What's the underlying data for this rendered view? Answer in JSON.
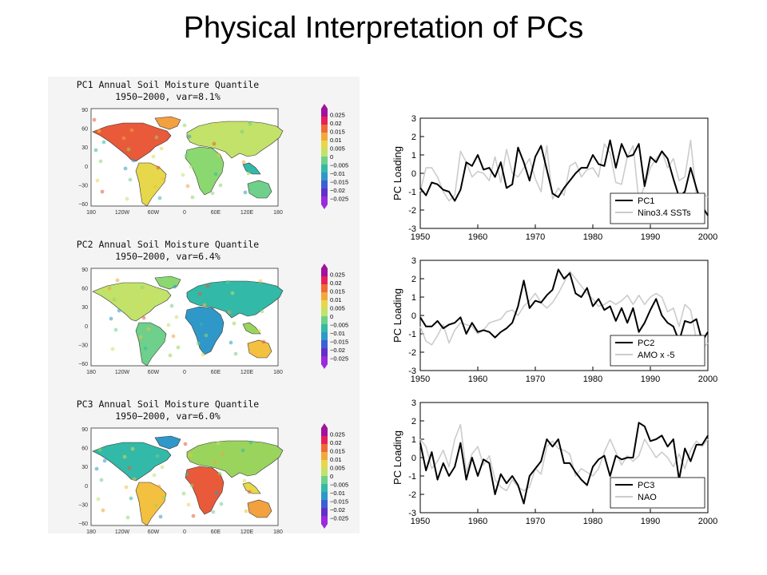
{
  "title": "Physical Interpretation of PCs",
  "maps": [
    {
      "title_line1": "PC1 Annual Soil Moisture Quantile",
      "title_line2": "1950−2000, var=8.1%"
    },
    {
      "title_line1": "PC2 Annual Soil Moisture Quantile",
      "title_line2": "1950−2000, var=6.4%"
    },
    {
      "title_line1": "PC3 Annual Soil Moisture Quantile",
      "title_line2": "1950−2000, var=6.0%"
    }
  ],
  "map_axes": {
    "lat_labels": [
      "90",
      "60",
      "30",
      "0",
      "−30",
      "−60"
    ],
    "lon_labels": [
      "180",
      "120W",
      "60W",
      "0",
      "60E",
      "120E",
      "180"
    ]
  },
  "colorbar": {
    "labels": [
      "0.025",
      "0.02",
      "0.015",
      "0.01",
      "0.005",
      "0",
      "−0.005",
      "−0.01",
      "−0.015",
      "−0.02",
      "−0.025"
    ],
    "colors": [
      "#a0139a",
      "#e8205a",
      "#f06a38",
      "#f4a83a",
      "#e6d84a",
      "#c2e26a",
      "#6ed08a",
      "#33b9a8",
      "#2f98c8",
      "#3c5ed6",
      "#6030c8",
      "#9a2adc"
    ]
  },
  "chart_data": [
    {
      "type": "line",
      "ylabel": "PC Loading",
      "xlim": [
        1950,
        2000
      ],
      "ylim": [
        -3,
        3
      ],
      "x_ticks": [
        "1950",
        "1960",
        "1970",
        "1980",
        "1990",
        "2000"
      ],
      "y_ticks": [
        "3",
        "2",
        "1",
        "0",
        "-1",
        "-2",
        "-3"
      ],
      "legend_position": "bottom-right",
      "series": [
        {
          "name": "PC1",
          "color": "#000000",
          "x": [
            1950,
            1951,
            1952,
            1953,
            1954,
            1955,
            1956,
            1957,
            1958,
            1959,
            1960,
            1961,
            1962,
            1963,
            1964,
            1965,
            1966,
            1967,
            1968,
            1969,
            1970,
            1971,
            1972,
            1973,
            1974,
            1975,
            1976,
            1977,
            1978,
            1979,
            1980,
            1981,
            1982,
            1983,
            1984,
            1985,
            1986,
            1987,
            1988,
            1989,
            1990,
            1991,
            1992,
            1993,
            1994,
            1995,
            1996,
            1997,
            1998,
            1999,
            2000
          ],
          "y": [
            -0.8,
            -1.2,
            -0.5,
            -0.6,
            -0.9,
            -1.0,
            -1.5,
            -0.9,
            0.6,
            0.4,
            1.0,
            0.2,
            0.3,
            -0.2,
            0.6,
            -0.8,
            -0.6,
            1.4,
            0.6,
            -0.4,
            0.9,
            1.5,
            0.2,
            -1.1,
            -1.3,
            -0.8,
            -0.4,
            0.0,
            0.3,
            0.3,
            1.0,
            0.5,
            0.4,
            1.8,
            0.3,
            1.6,
            0.9,
            1.0,
            1.6,
            -0.7,
            0.9,
            0.6,
            1.2,
            0.8,
            -0.3,
            -1.3,
            -1.0,
            0.3,
            -0.8,
            -1.8,
            -2.3
          ]
        },
        {
          "name": "Nino3.4 SSTs",
          "color": "#cccccc",
          "x": [
            1950,
            1951,
            1952,
            1953,
            1954,
            1955,
            1956,
            1957,
            1958,
            1959,
            1960,
            1961,
            1962,
            1963,
            1964,
            1965,
            1966,
            1967,
            1968,
            1969,
            1970,
            1971,
            1972,
            1973,
            1974,
            1975,
            1976,
            1977,
            1978,
            1979,
            1980,
            1981,
            1982,
            1983,
            1984,
            1985,
            1986,
            1987,
            1988,
            1989,
            1990,
            1991,
            1992,
            1993,
            1994,
            1995,
            1996,
            1997,
            1998,
            1999,
            2000
          ],
          "y": [
            -1.0,
            0.3,
            0.3,
            -0.2,
            -1.0,
            -1.5,
            -1.2,
            1.2,
            0.6,
            -0.2,
            0.1,
            0.0,
            -0.4,
            0.9,
            -0.5,
            1.3,
            0.0,
            -0.2,
            0.3,
            0.8,
            -0.3,
            -1.0,
            1.5,
            -1.4,
            -0.8,
            -1.2,
            0.4,
            0.6,
            -0.2,
            0.2,
            0.3,
            -0.2,
            1.6,
            1.1,
            -0.5,
            -0.6,
            0.9,
            1.5,
            -1.5,
            -0.7,
            0.3,
            0.8,
            1.2,
            0.3,
            0.8,
            -0.4,
            -0.2,
            1.8,
            -1.2,
            -1.1,
            -1.3
          ]
        }
      ]
    },
    {
      "type": "line",
      "ylabel": "PC Loading",
      "xlim": [
        1950,
        2000
      ],
      "ylim": [
        -3,
        3
      ],
      "x_ticks": [
        "1950",
        "1960",
        "1970",
        "1980",
        "1990",
        "2000"
      ],
      "y_ticks": [
        "3",
        "2",
        "1",
        "0",
        "-1",
        "-2",
        "-3"
      ],
      "legend_position": "bottom-right",
      "series": [
        {
          "name": "PC2",
          "color": "#000000",
          "x": [
            1950,
            1951,
            1952,
            1953,
            1954,
            1955,
            1956,
            1957,
            1958,
            1959,
            1960,
            1961,
            1962,
            1963,
            1964,
            1965,
            1966,
            1967,
            1968,
            1969,
            1970,
            1971,
            1972,
            1973,
            1974,
            1975,
            1976,
            1977,
            1978,
            1979,
            1980,
            1981,
            1982,
            1983,
            1984,
            1985,
            1986,
            1987,
            1988,
            1989,
            1990,
            1991,
            1992,
            1993,
            1994,
            1995,
            1996,
            1997,
            1998,
            1999,
            2000
          ],
          "y": [
            -0.1,
            -0.6,
            -0.6,
            -0.3,
            -0.7,
            -0.5,
            -0.4,
            -0.1,
            -1.0,
            -0.4,
            -0.9,
            -0.8,
            -0.9,
            -1.2,
            -0.9,
            -0.7,
            -0.4,
            0.5,
            1.9,
            0.4,
            0.8,
            0.7,
            1.1,
            1.4,
            2.5,
            2.0,
            2.3,
            1.2,
            1.0,
            1.5,
            0.5,
            0.9,
            0.3,
            0.5,
            -0.3,
            0.4,
            -0.4,
            0.4,
            -0.9,
            -0.4,
            0.3,
            0.9,
            0.0,
            -0.4,
            -0.6,
            -1.4,
            -0.3,
            -0.4,
            -0.2,
            -1.4,
            -0.9
          ]
        },
        {
          "name": "AMO x -5",
          "color": "#cccccc",
          "x": [
            1950,
            1951,
            1952,
            1953,
            1954,
            1955,
            1956,
            1957,
            1958,
            1959,
            1960,
            1961,
            1962,
            1963,
            1964,
            1965,
            1966,
            1967,
            1968,
            1969,
            1970,
            1971,
            1972,
            1973,
            1974,
            1975,
            1976,
            1977,
            1978,
            1979,
            1980,
            1981,
            1982,
            1983,
            1984,
            1985,
            1986,
            1987,
            1988,
            1989,
            1990,
            1991,
            1992,
            1993,
            1994,
            1995,
            1996,
            1997,
            1998,
            1999,
            2000
          ],
          "y": [
            -0.6,
            -1.4,
            -1.6,
            -1.1,
            -0.5,
            -1.5,
            -0.8,
            -0.4,
            -0.5,
            -0.6,
            -1.0,
            -0.8,
            -0.4,
            -0.3,
            -0.2,
            0.2,
            0.3,
            0.0,
            0.5,
            0.8,
            1.2,
            0.7,
            0.4,
            0.7,
            1.2,
            1.8,
            2.4,
            2.0,
            1.6,
            1.2,
            0.9,
            0.5,
            0.6,
            0.8,
            0.6,
            0.8,
            1.1,
            0.6,
            1.1,
            0.6,
            1.0,
            1.2,
            1.0,
            0.2,
            0.4,
            -0.6,
            0.6,
            0.3,
            -1.3,
            -1.8,
            -1.5
          ]
        }
      ]
    },
    {
      "type": "line",
      "ylabel": "PC Loading",
      "xlim": [
        1950,
        2000
      ],
      "ylim": [
        -3,
        3
      ],
      "x_ticks": [
        "1950",
        "1960",
        "1970",
        "1980",
        "1990",
        "2000"
      ],
      "y_ticks": [
        "3",
        "2",
        "1",
        "0",
        "-1",
        "-2",
        "-3"
      ],
      "legend_position": "bottom-right",
      "series": [
        {
          "name": "PC3",
          "color": "#000000",
          "x": [
            1950,
            1951,
            1952,
            1953,
            1954,
            1955,
            1956,
            1957,
            1958,
            1959,
            1960,
            1961,
            1962,
            1963,
            1964,
            1965,
            1966,
            1967,
            1968,
            1969,
            1970,
            1971,
            1972,
            1973,
            1974,
            1975,
            1976,
            1977,
            1978,
            1979,
            1980,
            1981,
            1982,
            1983,
            1984,
            1985,
            1986,
            1987,
            1988,
            1989,
            1990,
            1991,
            1992,
            1993,
            1994,
            1995,
            1996,
            1997,
            1998,
            1999,
            2000
          ],
          "y": [
            0.8,
            -0.7,
            0.3,
            -1.2,
            -0.3,
            -1.0,
            -0.5,
            0.8,
            -1.2,
            0.0,
            -1.0,
            -0.1,
            -0.3,
            -2.0,
            -0.9,
            -1.4,
            -1.0,
            -1.5,
            -2.5,
            -1.0,
            -0.6,
            -0.2,
            1.0,
            0.6,
            1.0,
            -0.3,
            -0.3,
            -0.8,
            -1.2,
            -1.5,
            -0.5,
            -0.1,
            0.1,
            -1.0,
            0.1,
            -0.1,
            0.0,
            0.0,
            1.9,
            1.7,
            0.9,
            1.0,
            1.2,
            0.6,
            1.0,
            -1.2,
            0.5,
            -0.2,
            0.7,
            0.7,
            1.2
          ]
        },
        {
          "name": "NAO",
          "color": "#cccccc",
          "x": [
            1950,
            1951,
            1952,
            1953,
            1954,
            1955,
            1956,
            1957,
            1958,
            1959,
            1960,
            1961,
            1962,
            1963,
            1964,
            1965,
            1966,
            1967,
            1968,
            1969,
            1970,
            1971,
            1972,
            1973,
            1974,
            1975,
            1976,
            1977,
            1978,
            1979,
            1980,
            1981,
            1982,
            1983,
            1984,
            1985,
            1986,
            1987,
            1988,
            1989,
            1990,
            1991,
            1992,
            1993,
            1994,
            1995,
            1996,
            1997,
            1998,
            1999,
            2000
          ],
          "y": [
            1.0,
            0.6,
            -0.6,
            -0.2,
            0.4,
            -0.5,
            1.0,
            1.8,
            -0.8,
            0.2,
            0.6,
            -0.4,
            0.1,
            -1.2,
            -1.6,
            -1.8,
            -1.2,
            -1.6,
            -1.8,
            -1.6,
            -0.6,
            -0.9,
            0.6,
            0.9,
            0.5,
            0.4,
            0.2,
            -1.0,
            -0.6,
            -0.8,
            -1.0,
            -0.6,
            0.3,
            1.0,
            0.3,
            -0.4,
            0.1,
            -0.2,
            0.1,
            1.0,
            0.5,
            0.0,
            0.3,
            0.0,
            -0.5,
            0.2,
            -0.6,
            0.4,
            0.9,
            0.6,
            1.0
          ]
        }
      ]
    }
  ]
}
